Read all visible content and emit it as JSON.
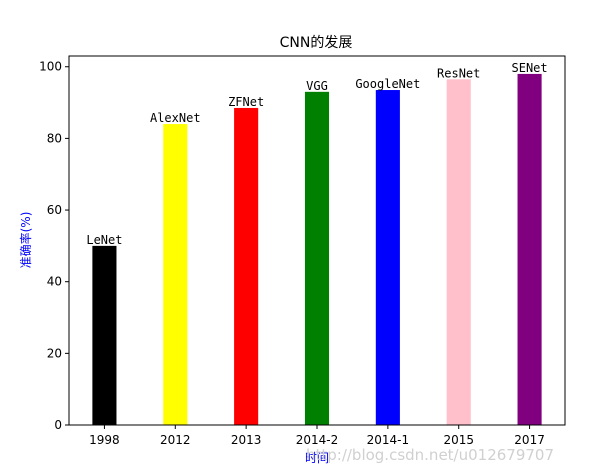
{
  "chart_data": {
    "type": "bar",
    "title": "CNN的发展",
    "xlabel": "时间",
    "ylabel": "准确率(%)",
    "ylim": [
      0,
      103
    ],
    "yticks": [
      0,
      20,
      40,
      60,
      80,
      100
    ],
    "categories": [
      "1998",
      "2012",
      "2013",
      "2014-2",
      "2014-1",
      "2015",
      "2017"
    ],
    "values": [
      50,
      84,
      88.5,
      93,
      93.5,
      96.5,
      98
    ],
    "labels": [
      "LeNet",
      "AlexNet",
      "ZFNet",
      "VGG",
      "GoogleNet",
      "ResNet",
      "SENet"
    ],
    "colors": [
      "#000000",
      "#ffff00",
      "#ff0000",
      "#008000",
      "#0000ff",
      "#ffc0cb",
      "#800080"
    ],
    "grid": false,
    "label_color": "#0000ff"
  },
  "watermark": "http://blog.csdn.net/u012679707"
}
